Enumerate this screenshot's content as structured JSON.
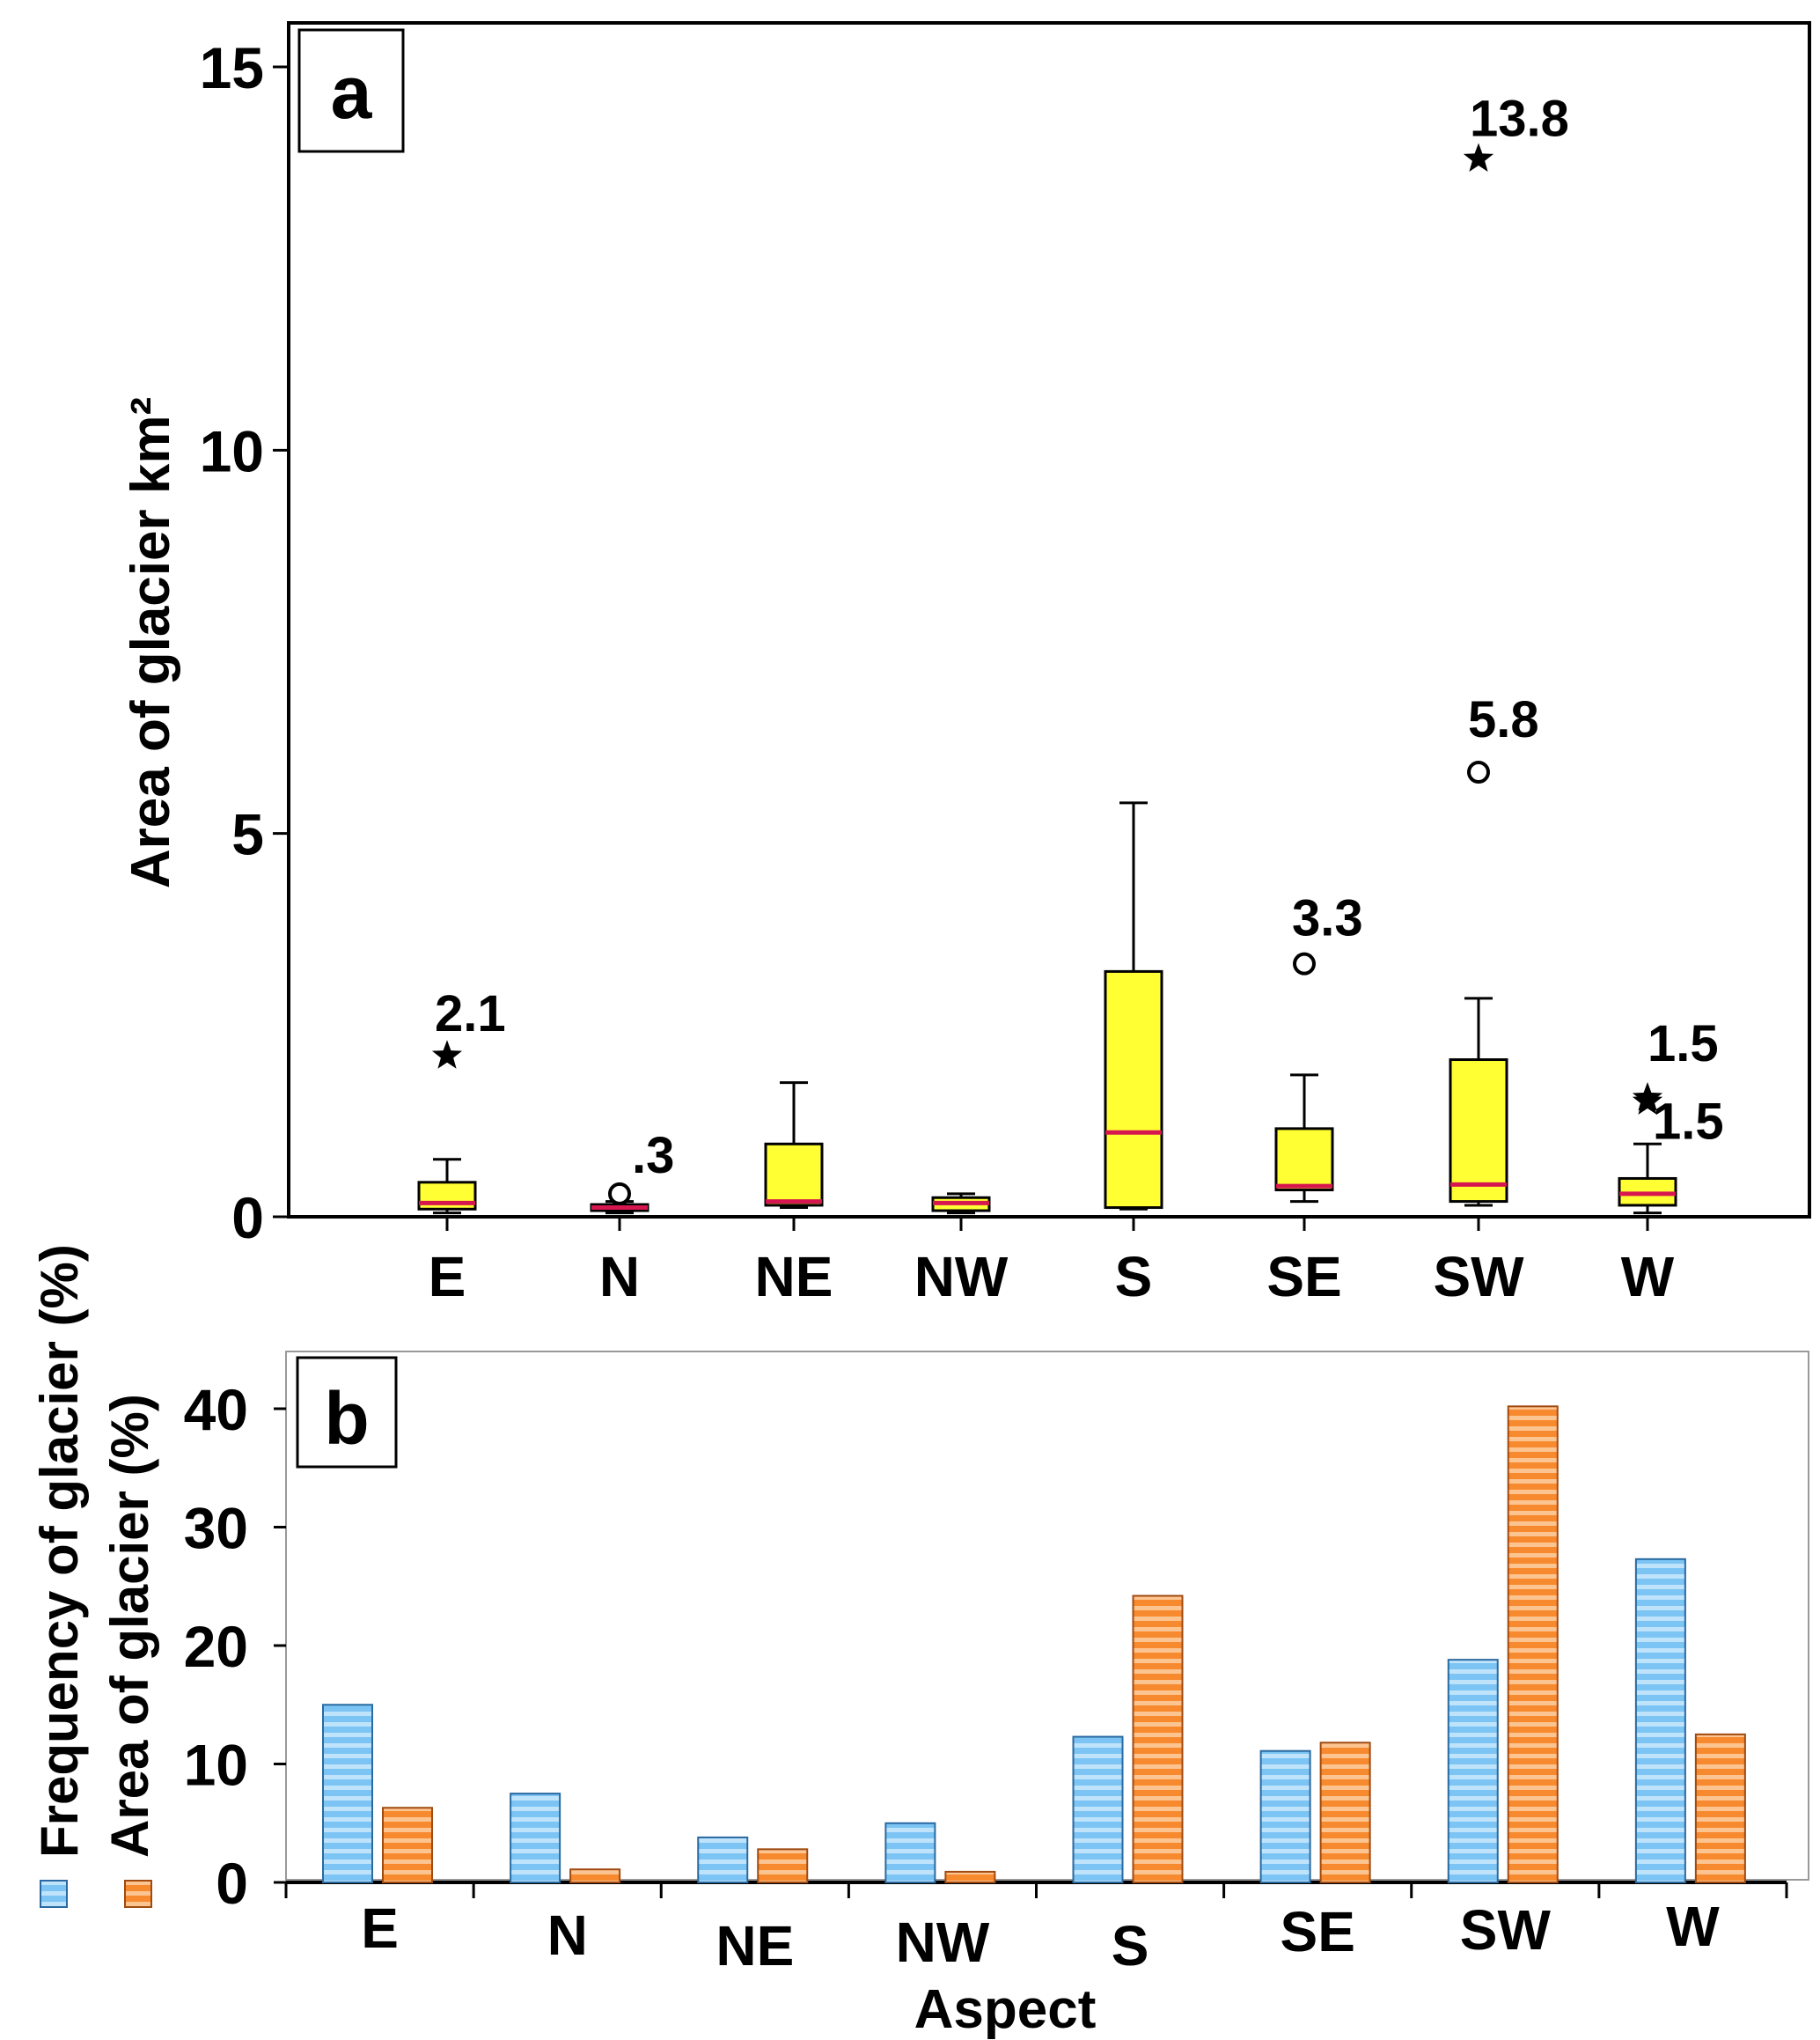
{
  "chart_data": [
    {
      "type": "box",
      "panel_label": "a",
      "ylabel": "Area of glacier km²",
      "ylim": [
        0,
        15.6
      ],
      "yticks": [
        0,
        5,
        10,
        15
      ],
      "categories": [
        "E",
        "N",
        "NE",
        "NW",
        "S",
        "SE",
        "SW",
        "W"
      ],
      "boxes": [
        {
          "category": "E",
          "whisker_low": 0.05,
          "q1": 0.1,
          "median": 0.18,
          "q3": 0.45,
          "whisker_high": 0.75
        },
        {
          "category": "N",
          "whisker_low": 0.05,
          "q1": 0.08,
          "median": 0.12,
          "q3": 0.16,
          "whisker_high": 0.2
        },
        {
          "category": "NE",
          "whisker_low": 0.12,
          "q1": 0.15,
          "median": 0.2,
          "q3": 0.95,
          "whisker_high": 1.75
        },
        {
          "category": "NW",
          "whisker_low": 0.05,
          "q1": 0.08,
          "median": 0.18,
          "q3": 0.25,
          "whisker_high": 0.3
        },
        {
          "category": "S",
          "whisker_low": 0.1,
          "q1": 0.12,
          "median": 1.1,
          "q3": 3.2,
          "whisker_high": 5.4
        },
        {
          "category": "SE",
          "whisker_low": 0.2,
          "q1": 0.35,
          "median": 0.4,
          "q3": 1.15,
          "whisker_high": 1.85
        },
        {
          "category": "SW",
          "whisker_low": 0.15,
          "q1": 0.2,
          "median": 0.42,
          "q3": 2.05,
          "whisker_high": 2.85
        },
        {
          "category": "W",
          "whisker_low": 0.05,
          "q1": 0.15,
          "median": 0.3,
          "q3": 0.5,
          "whisker_high": 0.95
        }
      ],
      "outliers": [
        {
          "category": "E",
          "value": 2.1,
          "marker": "star",
          "label": "2.1"
        },
        {
          "category": "N",
          "value": 0.3,
          "marker": "circle",
          "label": ".3"
        },
        {
          "category": "SE",
          "value": 3.3,
          "marker": "circle",
          "label": "3.3"
        },
        {
          "category": "SW",
          "value": 13.8,
          "marker": "star",
          "label": "13.8"
        },
        {
          "category": "SW",
          "value": 5.8,
          "marker": "circle",
          "label": "5.8"
        },
        {
          "category": "W",
          "value": 1.55,
          "marker": "star",
          "label": "1.5"
        },
        {
          "category": "W",
          "value": 1.5,
          "marker": "star",
          "label": "1.5"
        }
      ],
      "colors": {
        "box_fill": "#ffff33",
        "median": "#d6174f",
        "outline": "#000000"
      }
    },
    {
      "type": "bar",
      "panel_label": "b",
      "xlabel": "Aspect",
      "ylim": [
        0,
        45
      ],
      "yticks": [
        0,
        10,
        20,
        30,
        40
      ],
      "categories": [
        "E",
        "N",
        "NE",
        "NW",
        "S",
        "SE",
        "SW",
        "W"
      ],
      "series": [
        {
          "name": "Frequency of glacier (%)",
          "values": [
            15,
            7.5,
            3.8,
            5,
            12.3,
            11.1,
            18.8,
            27.3
          ],
          "color": "#6ab8ef"
        },
        {
          "name": "Area of glacier (%)",
          "values": [
            6.3,
            1.1,
            2.8,
            0.9,
            24.2,
            11.8,
            40.2,
            12.5
          ],
          "color": "#f79a4a"
        }
      ]
    }
  ]
}
